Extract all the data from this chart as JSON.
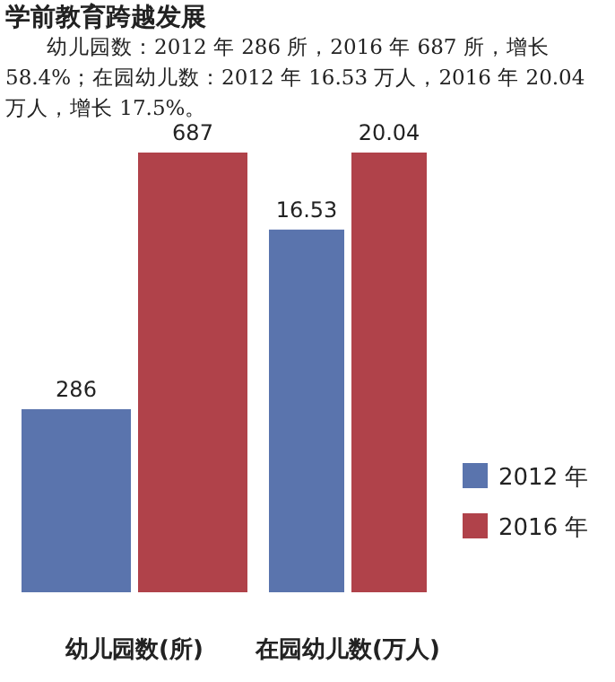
{
  "chart_data": [
    {
      "type": "bar",
      "title": "学前教育跨越发展",
      "annotations": [
        "幼儿园数：2012 年 286 所，2016 年 687 所，增长 58.4%；在园幼儿数：2012 年 16.53 万人，2016 年 20.04 万人，增长 17.5%。"
      ],
      "categories": [
        null
      ],
      "xlabel": "幼儿园数(所)",
      "data_labels": true,
      "series": [
        {
          "color": "#5a74ad",
          "values": [
            286
          ]
        },
        {
          "color": "#b0424a",
          "values": [
            687
          ]
        }
      ]
    },
    {
      "type": "bar",
      "categories": [
        null
      ],
      "xlabel": "在园幼儿数(万人)",
      "data_labels": true,
      "legend": "right",
      "series": [
        {
          "name": "2012 年",
          "color": "#5a74ad",
          "values": [
            16.53
          ]
        },
        {
          "name": "2016 年",
          "color": "#b0424a",
          "values": [
            20.04
          ]
        }
      ]
    }
  ]
}
